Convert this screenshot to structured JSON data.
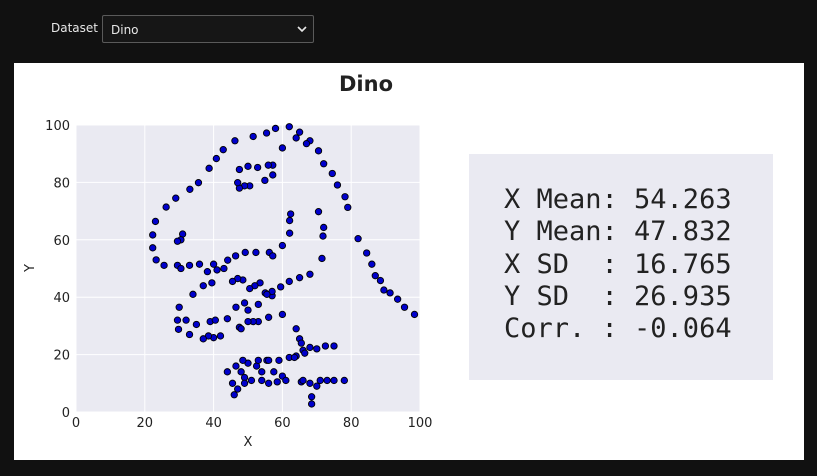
{
  "toolbar": {
    "dataset_label": "Dataset",
    "dataset_selected": "Dino"
  },
  "chart_data": {
    "type": "scatter",
    "title": "Dino",
    "xlabel": "X",
    "ylabel": "Y",
    "xlim": [
      0,
      100
    ],
    "ylim": [
      0,
      100
    ],
    "xticks": [
      "0",
      "20",
      "40",
      "60",
      "80",
      "100"
    ],
    "yticks": [
      "0",
      "20",
      "40",
      "60",
      "80",
      "100"
    ],
    "grid": true,
    "colors": {
      "marker": "#0000cc",
      "edge": "#000000",
      "plot_bg": "#eaeaf2",
      "grid": "#ffffff"
    },
    "points": [
      [
        55.4,
        97.2
      ],
      [
        51.5,
        96.0
      ],
      [
        46.2,
        94.5
      ],
      [
        42.8,
        91.4
      ],
      [
        40.8,
        88.3
      ],
      [
        38.7,
        84.9
      ],
      [
        35.6,
        79.9
      ],
      [
        33.1,
        77.6
      ],
      [
        29.0,
        74.5
      ],
      [
        26.2,
        71.4
      ],
      [
        23.1,
        66.4
      ],
      [
        22.3,
        61.7
      ],
      [
        22.3,
        57.2
      ],
      [
        23.3,
        53.0
      ],
      [
        25.6,
        51.1
      ],
      [
        29.5,
        51.1
      ],
      [
        33.0,
        51.1
      ],
      [
        35.9,
        51.5
      ],
      [
        38.2,
        48.9
      ],
      [
        40.0,
        51.5
      ],
      [
        44.1,
        52.9
      ],
      [
        46.4,
        54.4
      ],
      [
        49.2,
        55.6
      ],
      [
        52.3,
        55.6
      ],
      [
        56.2,
        55.6
      ],
      [
        57.2,
        54.4
      ],
      [
        60.0,
        58.0
      ],
      [
        62.1,
        62.3
      ],
      [
        62.1,
        66.7
      ],
      [
        62.4,
        69.0
      ],
      [
        57.2,
        86.0
      ],
      [
        55.9,
        86.0
      ],
      [
        57.2,
        82.6
      ],
      [
        54.9,
        80.7
      ],
      [
        50.5,
        78.8
      ],
      [
        49.0,
        78.8
      ],
      [
        47.5,
        78.0
      ],
      [
        47.0,
        79.9
      ],
      [
        47.5,
        84.5
      ],
      [
        50.0,
        85.6
      ],
      [
        52.8,
        85.2
      ],
      [
        70.5,
        69.8
      ],
      [
        72.0,
        64.3
      ],
      [
        71.8,
        61.3
      ],
      [
        58.0,
        98.8
      ],
      [
        62.0,
        99.4
      ],
      [
        65.0,
        97.5
      ],
      [
        68.0,
        94.5
      ],
      [
        70.5,
        91.0
      ],
      [
        72.0,
        86.5
      ],
      [
        74.5,
        83.1
      ],
      [
        76.0,
        79.1
      ],
      [
        78.2,
        75.0
      ],
      [
        79.0,
        71.3
      ],
      [
        82.0,
        60.4
      ],
      [
        84.5,
        55.4
      ],
      [
        86.0,
        51.5
      ],
      [
        87.0,
        47.5
      ],
      [
        88.5,
        45.8
      ],
      [
        89.5,
        42.5
      ],
      [
        91.3,
        41.5
      ],
      [
        93.5,
        39.3
      ],
      [
        95.5,
        36.5
      ],
      [
        98.4,
        34.0
      ],
      [
        71.5,
        53.5
      ],
      [
        68.0,
        48.0
      ],
      [
        65.0,
        46.8
      ],
      [
        62.0,
        45.5
      ],
      [
        59.5,
        43.6
      ],
      [
        57.0,
        40.5
      ],
      [
        55.0,
        41.5
      ],
      [
        53.0,
        37.5
      ],
      [
        50.0,
        35.5
      ],
      [
        49.0,
        38.0
      ],
      [
        47.5,
        29.5
      ],
      [
        46.5,
        36.5
      ],
      [
        44.0,
        32.5
      ],
      [
        42.0,
        26.5
      ],
      [
        40.0,
        25.9
      ],
      [
        38.5,
        26.5
      ],
      [
        37.0,
        25.5
      ],
      [
        35.0,
        30.5
      ],
      [
        33.0,
        27.0
      ],
      [
        32.0,
        32.0
      ],
      [
        30.0,
        36.5
      ],
      [
        29.5,
        32.0
      ],
      [
        29.8,
        28.8
      ],
      [
        39.0,
        31.5
      ],
      [
        40.5,
        32.0
      ],
      [
        46.5,
        16.0
      ],
      [
        45.5,
        10.0
      ],
      [
        47.0,
        8.0
      ],
      [
        48.0,
        14.0
      ],
      [
        49.0,
        12.0
      ],
      [
        50.0,
        17.0
      ],
      [
        52.5,
        16.0
      ],
      [
        54.0,
        14.0
      ],
      [
        55.5,
        18.0
      ],
      [
        57.5,
        14.0
      ],
      [
        58.5,
        10.5
      ],
      [
        60.0,
        12.5
      ],
      [
        62.0,
        19.0
      ],
      [
        64.0,
        19.5
      ],
      [
        66.0,
        21.5
      ],
      [
        68.0,
        22.5
      ],
      [
        70.0,
        22.0
      ],
      [
        72.5,
        23.0
      ],
      [
        75.0,
        23.0
      ],
      [
        65.5,
        10.5
      ],
      [
        68.0,
        10.0
      ],
      [
        70.0,
        9.0
      ],
      [
        71.0,
        11.0
      ],
      [
        73.0,
        11.0
      ],
      [
        75.0,
        11.0
      ],
      [
        78.0,
        11.0
      ],
      [
        68.5,
        2.8
      ],
      [
        68.5,
        5.3
      ],
      [
        66.0,
        11.0
      ],
      [
        61.0,
        11.0
      ],
      [
        56.0,
        10.0
      ],
      [
        54.0,
        11.0
      ],
      [
        51.0,
        11.0
      ],
      [
        49.0,
        10.0
      ],
      [
        46.0,
        6.0
      ],
      [
        44.0,
        14.0
      ],
      [
        48.5,
        18.0
      ],
      [
        53.0,
        18.0
      ],
      [
        56.0,
        18.0
      ],
      [
        59.0,
        18.0
      ],
      [
        63.5,
        19.0
      ],
      [
        64.0,
        29.0
      ],
      [
        65.0,
        25.5
      ],
      [
        65.5,
        24.0
      ],
      [
        66.5,
        20.5
      ],
      [
        60.0,
        34.0
      ],
      [
        56.0,
        33.0
      ],
      [
        53.0,
        31.5
      ],
      [
        51.5,
        31.5
      ],
      [
        50.0,
        31.5
      ],
      [
        48.0,
        29.0
      ],
      [
        57.0,
        42.0
      ],
      [
        55.5,
        41.0
      ],
      [
        53.5,
        45.0
      ],
      [
        52.0,
        44.0
      ],
      [
        50.5,
        43.0
      ],
      [
        48.5,
        46.0
      ],
      [
        47.0,
        46.5
      ],
      [
        45.5,
        45.5
      ],
      [
        30.5,
        50.0
      ],
      [
        31.0,
        62.0
      ],
      [
        30.5,
        60.0
      ],
      [
        29.5,
        59.5
      ],
      [
        34.0,
        41.0
      ],
      [
        37.0,
        44.0
      ],
      [
        39.5,
        45.0
      ],
      [
        41.0,
        49.5
      ],
      [
        43.0,
        50.0
      ],
      [
        60.0,
        92.0
      ],
      [
        64.0,
        95.5
      ],
      [
        67.0,
        93.5
      ]
    ]
  },
  "stats": {
    "x_mean": "X Mean: 54.263",
    "y_mean": "Y Mean: 47.832",
    "x_sd": "X SD  : 16.765",
    "y_sd": "Y SD  : 26.935",
    "corr": "Corr. : -0.064"
  }
}
